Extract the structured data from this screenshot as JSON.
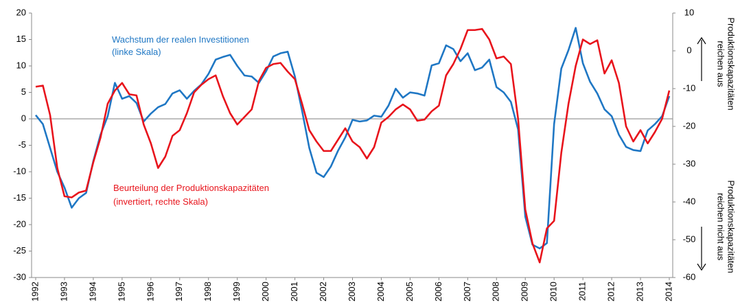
{
  "chart_data": {
    "type": "line",
    "x": [
      1992,
      1992.25,
      1992.5,
      1992.75,
      1993,
      1993.25,
      1993.5,
      1993.75,
      1994,
      1994.25,
      1994.5,
      1994.75,
      1995,
      1995.25,
      1995.5,
      1995.75,
      1996,
      1996.25,
      1996.5,
      1996.75,
      1997,
      1997.25,
      1997.5,
      1997.75,
      1998,
      1998.25,
      1998.5,
      1998.75,
      1999,
      1999.25,
      1999.5,
      1999.75,
      2000,
      2000.25,
      2000.5,
      2000.75,
      2001,
      2001.25,
      2001.5,
      2001.75,
      2002,
      2002.25,
      2002.5,
      2002.75,
      2003,
      2003.25,
      2003.5,
      2003.75,
      2004,
      2004.25,
      2004.5,
      2004.75,
      2005,
      2005.25,
      2005.5,
      2005.75,
      2006,
      2006.25,
      2006.5,
      2006.75,
      2007,
      2007.25,
      2007.5,
      2007.75,
      2008,
      2008.25,
      2008.5,
      2008.75,
      2009,
      2009.25,
      2009.5,
      2009.75,
      2010,
      2010.25,
      2010.5,
      2010.75,
      2011,
      2011.25,
      2011.5,
      2011.75,
      2012,
      2012.25,
      2012.5,
      2012.75,
      2013,
      2013.25,
      2013.5,
      2013.75,
      2014
    ],
    "series": [
      {
        "name": "Wachstum der realen Investitionen",
        "color": "#1f77c4",
        "axis": "y",
        "values": [
          0.7,
          -1,
          -5.5,
          -10,
          -13,
          -16.8,
          -15,
          -14,
          -8,
          -3,
          0.5,
          6.8,
          3.8,
          4.3,
          3,
          -0.5,
          1,
          2.2,
          2.8,
          4.8,
          5.4,
          3.8,
          5.3,
          6.5,
          8.5,
          11.2,
          11.7,
          12.1,
          10,
          8.2,
          8,
          6.8,
          9,
          11.8,
          12.4,
          12.7,
          8,
          1.5,
          -5.5,
          -10.2,
          -11,
          -9,
          -6,
          -3.5,
          -0.2,
          -0.5,
          -0.3,
          0.6,
          0.4,
          2.5,
          5.7,
          4,
          5,
          4.8,
          4.4,
          10.1,
          10.5,
          13.9,
          13.2,
          10.9,
          12.4,
          9.2,
          9.7,
          11.2,
          6,
          5,
          3.2,
          -2,
          -18.5,
          -23.8,
          -24.5,
          -23.5,
          -1,
          9.5,
          13,
          17.2,
          10.5,
          7,
          4.8,
          1.8,
          0.5,
          -3,
          -5.3,
          -5.9,
          -6.1,
          -2.2,
          -1,
          0.5,
          4.3
        ]
      },
      {
        "name": "Beurteilung der Produktionskapazitäten",
        "color": "#e8141c",
        "axis": "y2",
        "values": [
          -9.5,
          -9.2,
          -17,
          -31,
          -38.5,
          -38.8,
          -37.5,
          -37,
          -29.5,
          -23,
          -14,
          -10.5,
          -8.5,
          -11.5,
          -11.8,
          -19.5,
          -24.5,
          -31,
          -28,
          -22.5,
          -21,
          -16.5,
          -11,
          -9,
          -7.5,
          -6.5,
          -12,
          -16.5,
          -19.5,
          -17.5,
          -15.5,
          -8,
          -4.5,
          -3.5,
          -3.2,
          -5.5,
          -7.5,
          -14,
          -21,
          -24,
          -26.5,
          -26.5,
          -23.5,
          -20.5,
          -24,
          -25.5,
          -28.5,
          -25.5,
          -19,
          -17.5,
          -15.5,
          -14.2,
          -15.5,
          -18.5,
          -18.2,
          -16,
          -14.5,
          -6.5,
          -3.5,
          0.5,
          5.5,
          5.5,
          5.8,
          3,
          -2,
          -1.5,
          -3.5,
          -18,
          -42,
          -51,
          -56,
          -47,
          -45,
          -27,
          -14,
          -4,
          3,
          1.8,
          2.8,
          -6,
          -2.5,
          -8.5,
          -20,
          -24,
          -21,
          -24.5,
          -21.5,
          -18,
          -10.5
        ]
      }
    ],
    "annotations": [
      "(linke Skala)",
      "(invertiert, rechte Skala)"
    ],
    "y2label_top": [
      "Produktionskapazitäten",
      "reichen aus"
    ],
    "y2label_bottom": [
      "Produktionskapazitäten",
      "reichen nicht aus"
    ],
    "xlim": [
      1992,
      2014
    ],
    "xticks": [
      1992,
      1993,
      1994,
      1995,
      1996,
      1997,
      1998,
      1999,
      2000,
      2001,
      2002,
      2003,
      2004,
      2005,
      2006,
      2007,
      2008,
      2009,
      2010,
      2011,
      2012,
      2013,
      2014
    ],
    "ylim": [
      -30,
      20
    ],
    "yticks": [
      -30,
      -25,
      -20,
      -15,
      -10,
      -5,
      0,
      5,
      10,
      15,
      20
    ],
    "y2lim": [
      -60,
      10
    ],
    "y2ticks": [
      -60,
      -50,
      -40,
      -30,
      -20,
      -10,
      0,
      10
    ]
  }
}
